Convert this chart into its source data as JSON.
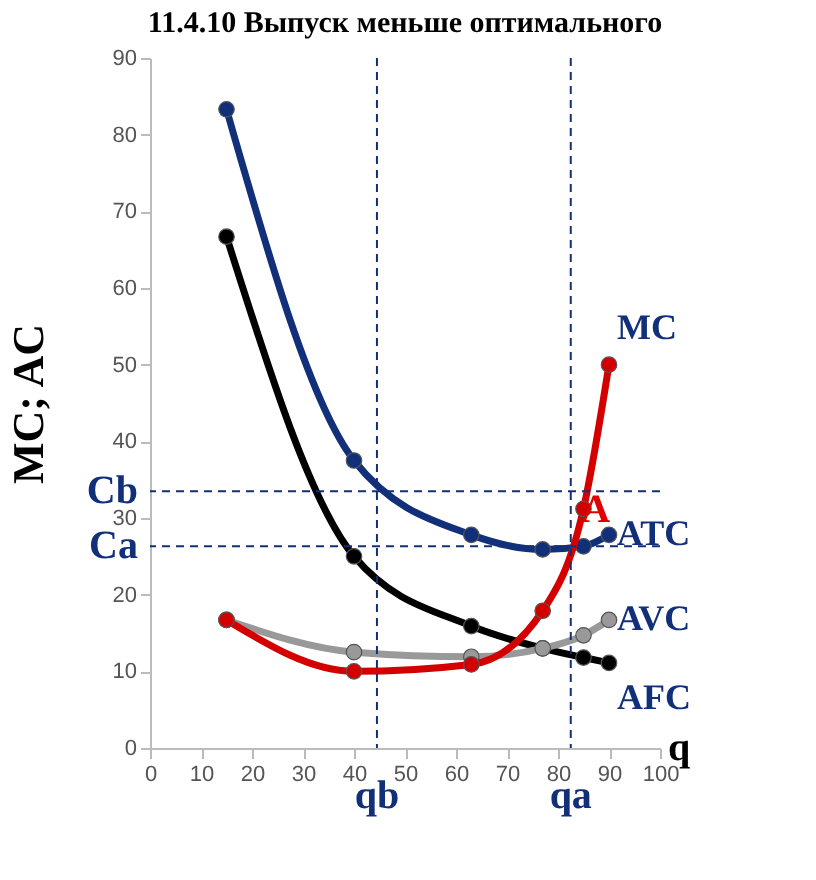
{
  "chart_data": {
    "type": "line",
    "title": "11.4.10 Выпуск меньше оптимального",
    "xlabel": "q",
    "ylabel": "MC; AC",
    "x": [
      15,
      40,
      63,
      77,
      85,
      90
    ],
    "series": [
      {
        "name": "ATC",
        "color": "#12307a",
        "values": [
          83.3,
          37.5,
          27.8,
          25.9,
          26.3,
          27.8
        ]
      },
      {
        "name": "AFC",
        "color": "#000000",
        "values": [
          66.7,
          25,
          15.9,
          13,
          11.8,
          11.1
        ]
      },
      {
        "name": "AVC",
        "color": "#999999",
        "values": [
          16.7,
          12.5,
          11.9,
          13,
          14.7,
          16.7
        ]
      },
      {
        "name": "MC",
        "color": "#d40000",
        "values": [
          16.7,
          10,
          10.9,
          17.9,
          31.2,
          50
        ]
      }
    ],
    "xlim": [
      0,
      100
    ],
    "xticks": [
      0,
      10,
      20,
      30,
      40,
      50,
      60,
      70,
      80,
      90,
      100
    ],
    "ylim": [
      0,
      90
    ],
    "yticks": [
      0,
      10,
      20,
      30,
      40,
      50,
      60,
      70,
      80,
      90
    ],
    "marker": "circle",
    "line_style": "solid",
    "grid": false,
    "ref_lines": [
      {
        "axis": "y",
        "value": 33.5,
        "label": "Cb",
        "color": "#12307a",
        "line_style": "dashed"
      },
      {
        "axis": "y",
        "value": 26.3,
        "label": "Ca",
        "color": "#12307a",
        "line_style": "dashed"
      },
      {
        "axis": "x",
        "value": 44.5,
        "label": "qb",
        "color": "#12307a",
        "line_style": "dashed"
      },
      {
        "axis": "x",
        "value": 82.5,
        "label": "qa",
        "color": "#12307a",
        "line_style": "dashed"
      }
    ],
    "annotations": [
      {
        "text": "A",
        "x": 83,
        "y": 26.3
      }
    ]
  }
}
